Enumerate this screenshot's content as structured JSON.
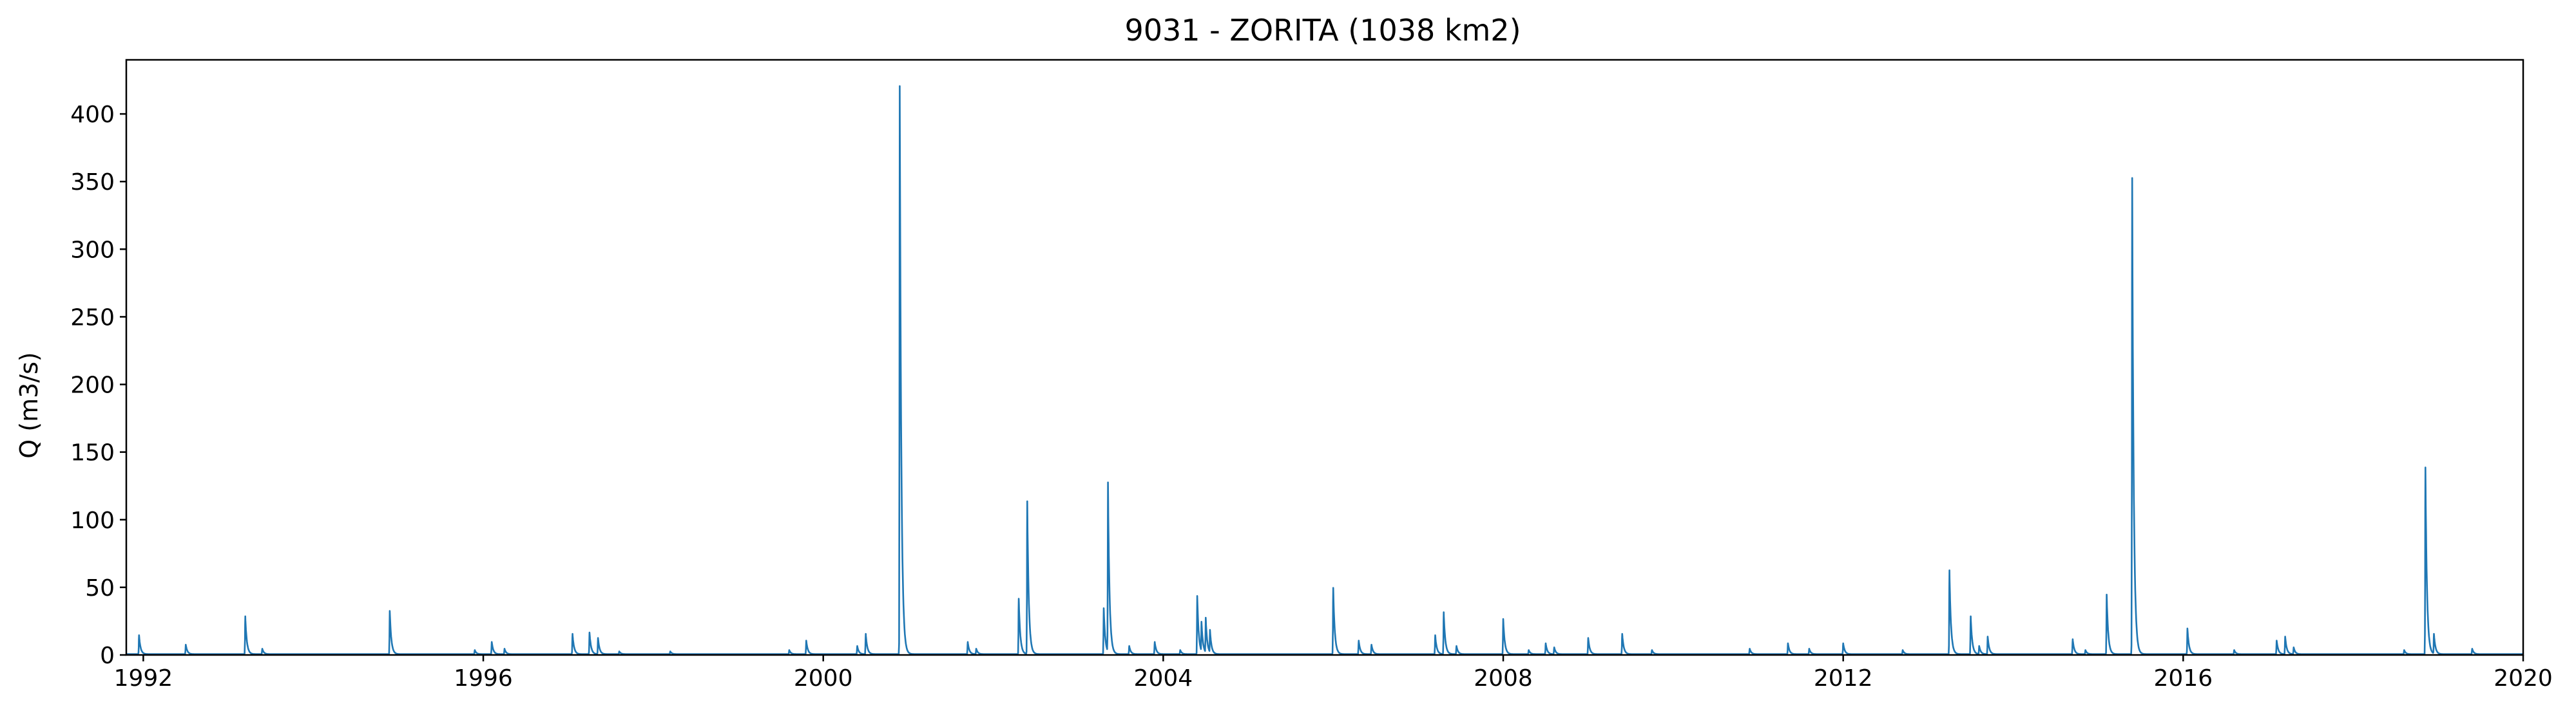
{
  "chart_data": {
    "type": "line",
    "title": "9031 - ZORITA (1038 km2)",
    "xlabel": "",
    "ylabel": "Q (m3/s)",
    "xlim": [
      1991.8,
      2020.0
    ],
    "ylim": [
      0,
      440
    ],
    "x_ticks": [
      1992,
      1996,
      2000,
      2004,
      2008,
      2012,
      2016,
      2020
    ],
    "x_tick_labels": [
      "1992",
      "1996",
      "2000",
      "2004",
      "2008",
      "2012",
      "2016",
      "2020"
    ],
    "y_ticks": [
      0,
      50,
      100,
      150,
      200,
      250,
      300,
      350,
      400
    ],
    "y_tick_labels": [
      "0",
      "50",
      "100",
      "150",
      "200",
      "250",
      "300",
      "350",
      "400"
    ],
    "grid": false,
    "legend": "none",
    "line_color": "#1f77b4",
    "series": [
      {
        "peaks": [
          [
            1991.95,
            14
          ],
          [
            1992.5,
            7
          ],
          [
            1993.2,
            28
          ],
          [
            1993.4,
            4
          ],
          [
            1994.9,
            32
          ],
          [
            1995.9,
            3
          ],
          [
            1996.1,
            9
          ],
          [
            1996.25,
            4
          ],
          [
            1997.05,
            15
          ],
          [
            1997.25,
            16
          ],
          [
            1997.35,
            12
          ],
          [
            1997.6,
            2
          ],
          [
            1998.2,
            2
          ],
          [
            1999.6,
            3
          ],
          [
            1999.8,
            10
          ],
          [
            2000.4,
            6
          ],
          [
            2000.5,
            15
          ],
          [
            2000.9,
            420
          ],
          [
            2001.7,
            9
          ],
          [
            2001.8,
            4
          ],
          [
            2002.3,
            41
          ],
          [
            2002.4,
            113
          ],
          [
            2003.3,
            34
          ],
          [
            2003.35,
            127
          ],
          [
            2003.6,
            6
          ],
          [
            2003.9,
            9
          ],
          [
            2004.2,
            3
          ],
          [
            2004.4,
            43
          ],
          [
            2004.45,
            24
          ],
          [
            2004.5,
            27
          ],
          [
            2004.55,
            18
          ],
          [
            2006.0,
            49
          ],
          [
            2006.3,
            10
          ],
          [
            2006.45,
            7
          ],
          [
            2007.2,
            14
          ],
          [
            2007.3,
            31
          ],
          [
            2007.45,
            6
          ],
          [
            2008.0,
            26
          ],
          [
            2008.3,
            3
          ],
          [
            2008.5,
            8
          ],
          [
            2008.6,
            5
          ],
          [
            2009.0,
            12
          ],
          [
            2009.4,
            15
          ],
          [
            2009.75,
            3
          ],
          [
            2010.9,
            4
          ],
          [
            2011.35,
            8
          ],
          [
            2011.6,
            4
          ],
          [
            2012.0,
            8
          ],
          [
            2012.7,
            3
          ],
          [
            2013.25,
            62
          ],
          [
            2013.5,
            28
          ],
          [
            2013.6,
            6
          ],
          [
            2013.7,
            13
          ],
          [
            2014.7,
            11
          ],
          [
            2014.85,
            3
          ],
          [
            2015.1,
            44
          ],
          [
            2015.4,
            352
          ],
          [
            2016.05,
            19
          ],
          [
            2016.6,
            3
          ],
          [
            2017.1,
            10
          ],
          [
            2017.2,
            13
          ],
          [
            2017.3,
            5
          ],
          [
            2018.6,
            3
          ],
          [
            2018.85,
            138
          ],
          [
            2018.95,
            15
          ],
          [
            2019.4,
            4
          ]
        ]
      }
    ]
  }
}
